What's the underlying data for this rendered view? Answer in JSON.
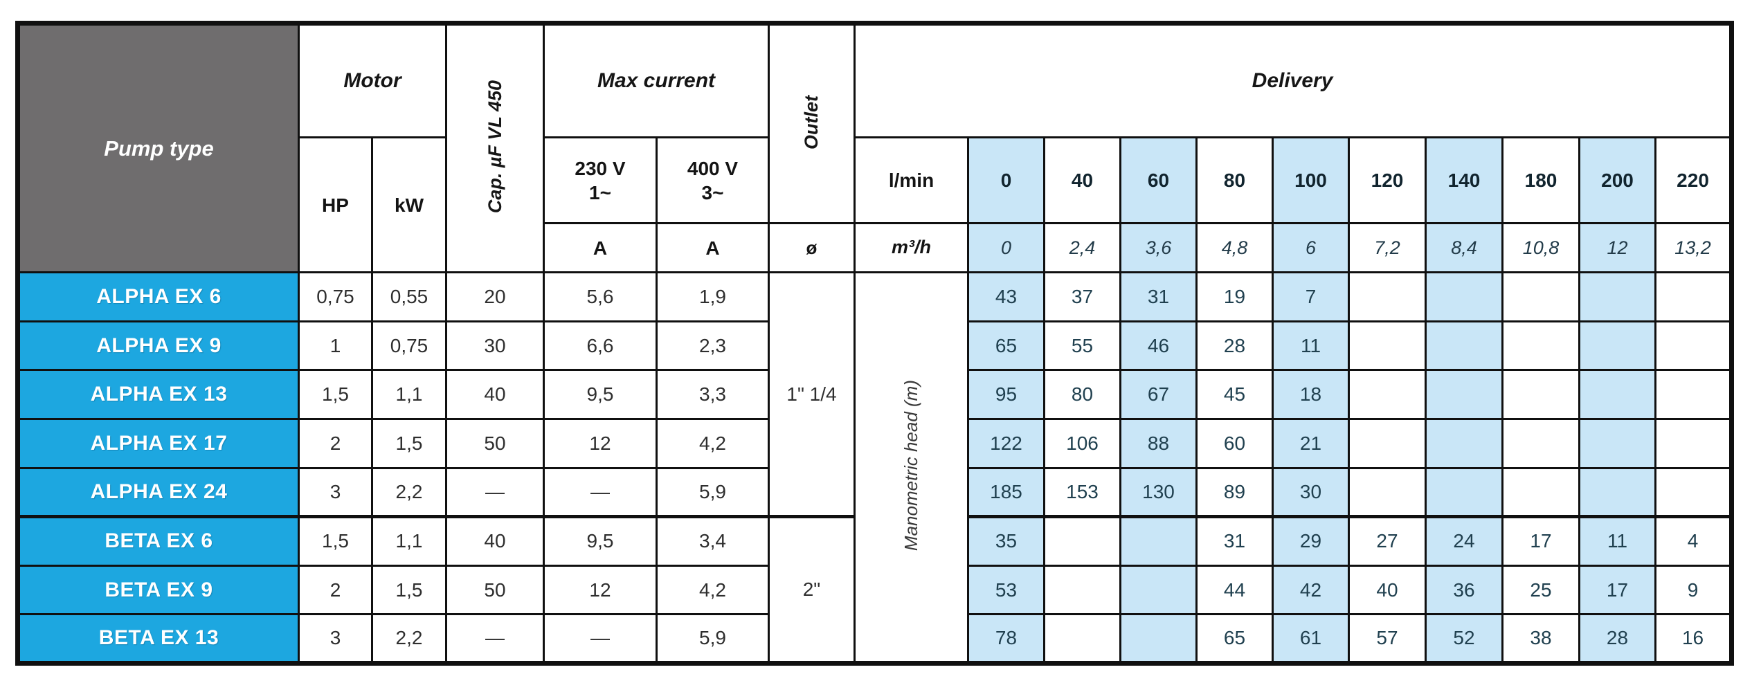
{
  "header": {
    "pump_type": "Pump type",
    "motor": "Motor",
    "hp": "HP",
    "kw": "kW",
    "capacitor": "Cap. µF VL 450",
    "max_current": "Max current",
    "voltage_230": "230 V",
    "phase_1": "1~",
    "voltage_400": "400 V",
    "phase_3": "3~",
    "ampere": "A",
    "outlet": "Outlet",
    "outlet_diameter_symbol": "ø",
    "delivery": "Delivery",
    "flow_lmin_label": "l/min",
    "flow_m3h_label": "m³/h",
    "manometric_head_label": "Manometric head (m)"
  },
  "delivery_columns": {
    "lmin": [
      "0",
      "40",
      "60",
      "80",
      "100",
      "120",
      "140",
      "180",
      "200",
      "220"
    ],
    "m3h": [
      "0",
      "2,4",
      "3,6",
      "4,8",
      "6",
      "7,2",
      "8,4",
      "10,8",
      "12",
      "13,2"
    ],
    "highlighted_indexes": [
      0,
      2,
      4,
      6,
      8
    ]
  },
  "outlets": [
    {
      "label": "1\" 1/4",
      "row_span": 5
    },
    {
      "label": "2\"",
      "row_span": 3
    }
  ],
  "rows": [
    {
      "name": "ALPHA EX 6",
      "hp": "0,75",
      "kw": "0,55",
      "cap": "20",
      "amp_230": "5,6",
      "amp_400": "1,9",
      "head_m": [
        "43",
        "37",
        "31",
        "19",
        "7",
        "",
        "",
        "",
        "",
        ""
      ]
    },
    {
      "name": "ALPHA EX 9",
      "hp": "1",
      "kw": "0,75",
      "cap": "30",
      "amp_230": "6,6",
      "amp_400": "2,3",
      "head_m": [
        "65",
        "55",
        "46",
        "28",
        "11",
        "",
        "",
        "",
        "",
        ""
      ]
    },
    {
      "name": "ALPHA EX 13",
      "hp": "1,5",
      "kw": "1,1",
      "cap": "40",
      "amp_230": "9,5",
      "amp_400": "3,3",
      "head_m": [
        "95",
        "80",
        "67",
        "45",
        "18",
        "",
        "",
        "",
        "",
        ""
      ]
    },
    {
      "name": "ALPHA EX 17",
      "hp": "2",
      "kw": "1,5",
      "cap": "50",
      "amp_230": "12",
      "amp_400": "4,2",
      "head_m": [
        "122",
        "106",
        "88",
        "60",
        "21",
        "",
        "",
        "",
        "",
        ""
      ]
    },
    {
      "name": "ALPHA EX 24",
      "hp": "3",
      "kw": "2,2",
      "cap": "—",
      "amp_230": "—",
      "amp_400": "5,9",
      "head_m": [
        "185",
        "153",
        "130",
        "89",
        "30",
        "",
        "",
        "",
        "",
        ""
      ]
    },
    {
      "name": "BETA EX 6",
      "hp": "1,5",
      "kw": "1,1",
      "cap": "40",
      "amp_230": "9,5",
      "amp_400": "3,4",
      "head_m": [
        "35",
        "",
        "",
        "31",
        "29",
        "27",
        "24",
        "17",
        "11",
        "4"
      ]
    },
    {
      "name": "BETA EX 9",
      "hp": "2",
      "kw": "1,5",
      "cap": "50",
      "amp_230": "12",
      "amp_400": "4,2",
      "head_m": [
        "53",
        "",
        "",
        "44",
        "42",
        "40",
        "36",
        "25",
        "17",
        "9"
      ]
    },
    {
      "name": "BETA EX 13",
      "hp": "3",
      "kw": "2,2",
      "cap": "—",
      "amp_230": "—",
      "amp_400": "5,9",
      "head_m": [
        "78",
        "",
        "",
        "65",
        "61",
        "57",
        "52",
        "38",
        "28",
        "16"
      ]
    }
  ],
  "colors": {
    "pump_row_bg": "#1da7e0",
    "header_gray_bg": "#6f6d6e",
    "highlight_bg": "#c9e6f7",
    "row_separator": "#3e7e90",
    "pump_separator": "#9fe2f6",
    "border_black": "#101010"
  }
}
